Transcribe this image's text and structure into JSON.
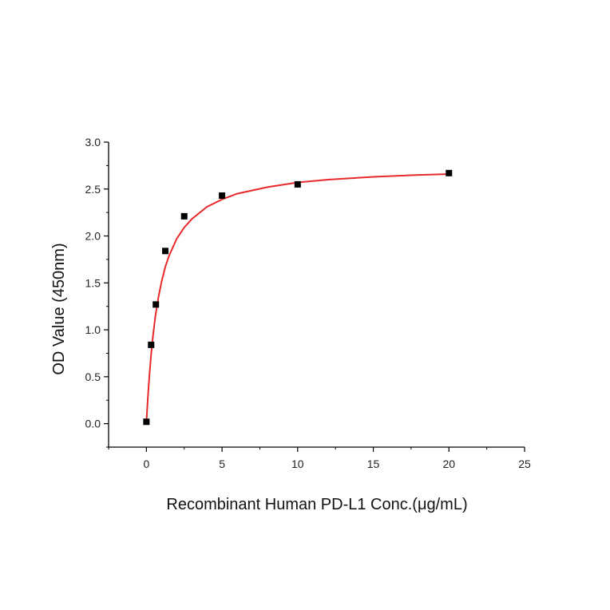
{
  "chart_data": {
    "type": "scatter",
    "title": "",
    "xlabel": "Recombinant Human PD-L1 Conc.(μg/mL)",
    "ylabel": "OD Value (450nm)",
    "xlim": [
      -2.5,
      25
    ],
    "ylim": [
      -0.25,
      3.0
    ],
    "x_ticks": [
      0,
      5,
      10,
      15,
      20,
      25
    ],
    "y_ticks": [
      0.0,
      0.5,
      1.0,
      1.5,
      2.0,
      2.5,
      3.0
    ],
    "x_tick_labels": [
      "0",
      "5",
      "10",
      "15",
      "20",
      "25"
    ],
    "y_tick_labels": [
      "0.0",
      "0.5",
      "1.0",
      "1.5",
      "2.0",
      "2.5",
      "3.0"
    ],
    "grid": false,
    "legend": "none",
    "series": [
      {
        "type": "scatter",
        "x": [
          0,
          0.3125,
          0.625,
          1.25,
          2.5,
          5,
          10,
          20
        ],
        "y": [
          0.02,
          0.84,
          1.27,
          1.84,
          2.21,
          2.43,
          2.55,
          2.67
        ],
        "color": "#000000",
        "marker": "square"
      },
      {
        "type": "line",
        "fit": "hyperbolic",
        "x": [
          0,
          0.1,
          0.2,
          0.3,
          0.4,
          0.5,
          0.6,
          0.8,
          1,
          1.25,
          1.5,
          2,
          2.5,
          3,
          4,
          5,
          6,
          8,
          10,
          12,
          15,
          18,
          20
        ],
        "y": [
          0.02,
          0.29,
          0.52,
          0.71,
          0.88,
          1.02,
          1.15,
          1.35,
          1.51,
          1.67,
          1.79,
          1.97,
          2.09,
          2.18,
          2.31,
          2.39,
          2.45,
          2.52,
          2.57,
          2.6,
          2.63,
          2.65,
          2.66
        ],
        "color": "#e8292c"
      }
    ]
  }
}
